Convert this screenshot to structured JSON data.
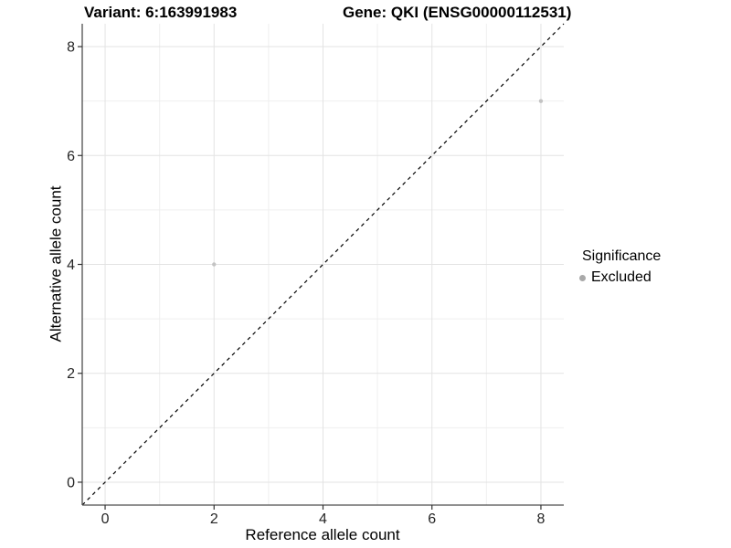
{
  "titles": {
    "variant": "Variant: 6:163991983",
    "gene": "Gene: QKI (ENSG00000112531)"
  },
  "chart_data": {
    "type": "scatter",
    "xlabel": "Reference allele count",
    "ylabel": "Alternative allele count",
    "xlim": [
      -0.42,
      8.42
    ],
    "ylim": [
      -0.42,
      8.42
    ],
    "x_ticks": [
      0,
      2,
      4,
      6,
      8
    ],
    "y_ticks": [
      0,
      2,
      4,
      6,
      8
    ],
    "x_minor": [
      1,
      3,
      5,
      7
    ],
    "y_minor": [
      1,
      3,
      5,
      7
    ],
    "grid": {
      "major_color": "#e3e3e3",
      "minor_color": "#efefef",
      "grid_on": true
    },
    "axis_color": "#4d4d4d",
    "tick_color": "#333333",
    "identity_line": {
      "style": "dashed",
      "color": "#000000",
      "from": [
        -0.42,
        -0.42
      ],
      "to": [
        8.42,
        8.42
      ]
    },
    "series": [
      {
        "name": "Excluded",
        "color": "#c3c3c3",
        "point_radius": 2.2,
        "points": [
          {
            "x": 2,
            "y": 4
          },
          {
            "x": 8,
            "y": 7
          }
        ]
      }
    ],
    "legend": {
      "title": "Significance",
      "position": "right",
      "items": [
        {
          "label": "Excluded",
          "color": "#a9a9a9"
        }
      ]
    }
  }
}
